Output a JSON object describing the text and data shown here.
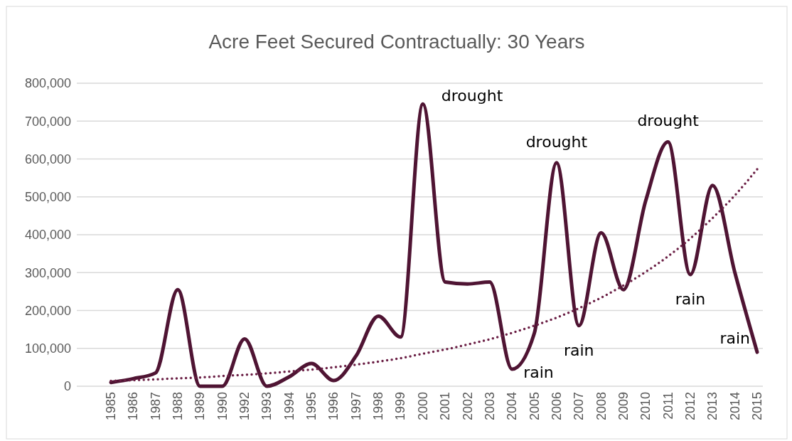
{
  "chart_data": {
    "type": "line",
    "title": "Acre Feet Secured Contractually: 30 Years",
    "categories": [
      "1985",
      "1986",
      "1987",
      "1988",
      "1989",
      "1990",
      "1992",
      "1993",
      "1994",
      "1995",
      "1996",
      "1997",
      "1998",
      "1999",
      "2000",
      "2001",
      "2002",
      "2003",
      "2004",
      "2005",
      "2006",
      "2007",
      "2008",
      "2009",
      "2010",
      "2011",
      "2012",
      "2013",
      "2014",
      "2015"
    ],
    "series": [
      {
        "color": "#4f1433",
        "line_style": "solid",
        "values": [
          10000,
          20000,
          35000,
          255000,
          0,
          0,
          125000,
          0,
          25000,
          60000,
          15000,
          80000,
          185000,
          130000,
          745000,
          275000,
          270000,
          275000,
          45000,
          140000,
          590000,
          160000,
          405000,
          255000,
          490000,
          645000,
          295000,
          530000,
          300000,
          90000
        ]
      },
      {
        "type": "line",
        "color": "#6b1f45",
        "line_style": "dotted",
        "values": [
          14000,
          16000,
          18000,
          21000,
          23000,
          27000,
          30000,
          34000,
          39000,
          44000,
          50000,
          57000,
          65000,
          74000,
          86000,
          97000,
          110000,
          124000,
          141000,
          160000,
          181000,
          206000,
          234000,
          266000,
          302000,
          343000,
          390000,
          444000,
          504000,
          573000
        ]
      }
    ],
    "ylim": [
      0,
      800000
    ],
    "yticks": [
      {
        "value": 0,
        "label": "0"
      },
      {
        "value": 100000,
        "label": "100,000"
      },
      {
        "value": 200000,
        "label": "200,000"
      },
      {
        "value": 300000,
        "label": "300,000"
      },
      {
        "value": 400000,
        "label": "400,000"
      },
      {
        "value": 500000,
        "label": "500,000"
      },
      {
        "value": 600000,
        "label": "600,000"
      },
      {
        "value": 700000,
        "label": "700,000"
      },
      {
        "value": 800000,
        "label": "800,000"
      }
    ],
    "grid": "y",
    "annotations": [
      {
        "text": "drought",
        "x": "2000",
        "y": 745000
      },
      {
        "text": "drought",
        "x": "2006",
        "y": 590000
      },
      {
        "text": "drought",
        "x": "2011",
        "y": 645000
      },
      {
        "text": "rain",
        "x": "2004",
        "y": 45000
      },
      {
        "text": "rain",
        "x": "2007",
        "y": 160000
      },
      {
        "text": "rain",
        "x": "2012",
        "y": 295000
      },
      {
        "text": "rain",
        "x": "2015",
        "y": 90000
      }
    ]
  }
}
